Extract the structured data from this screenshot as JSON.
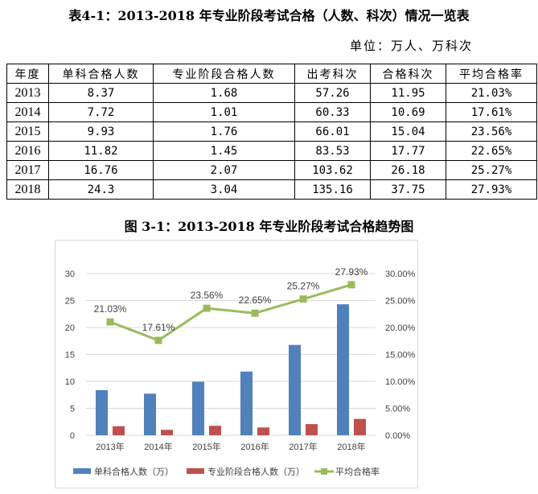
{
  "table_title": "表4-1：2013-2018 年专业阶段考试合格（人数、科次）情况一览表",
  "unit": "单位：万人、万科次",
  "table": {
    "headers": [
      "年度",
      "单科合格人数",
      "专业阶段合格人数",
      "出考科次",
      "合格科次",
      "平均合格率"
    ],
    "rows": [
      [
        "2013",
        "8.37",
        "1.68",
        "57.26",
        "11.95",
        "21.03%"
      ],
      [
        "2014",
        "7.72",
        "1.01",
        "60.33",
        "10.69",
        "17.61%"
      ],
      [
        "2015",
        "9.93",
        "1.76",
        "66.01",
        "15.04",
        "23.56%"
      ],
      [
        "2016",
        "11.82",
        "1.45",
        "83.53",
        "17.77",
        "22.65%"
      ],
      [
        "2017",
        "16.76",
        "2.07",
        "103.62",
        "26.18",
        "25.27%"
      ],
      [
        "2018",
        "24.3",
        "3.04",
        "135.16",
        "37.75",
        "27.93%"
      ]
    ]
  },
  "chart_title": "图 3-1：2013-2018 年专业阶段考试合格趋势图",
  "chart_data": {
    "type": "bar",
    "categories": [
      "2013年",
      "2014年",
      "2015年",
      "2016年",
      "2017年",
      "2018年"
    ],
    "series": [
      {
        "name": "单科合格人数（万）",
        "type": "bar",
        "axis": "left",
        "color": "#4f81bd",
        "values": [
          8.37,
          7.72,
          9.93,
          11.82,
          16.76,
          24.3
        ]
      },
      {
        "name": "专业阶段合格人数（万）",
        "type": "bar",
        "axis": "left",
        "color": "#c0504d",
        "values": [
          1.68,
          1.01,
          1.76,
          1.45,
          2.07,
          3.04
        ]
      },
      {
        "name": "平均合格率",
        "type": "line",
        "axis": "right",
        "color": "#9bbb59",
        "values": [
          21.03,
          17.61,
          23.56,
          22.65,
          25.27,
          27.93
        ],
        "labels": [
          "21.03%",
          "17.61%",
          "23.56%",
          "22.65%",
          "25.27%",
          "27.93%"
        ]
      }
    ],
    "ylim": [
      0,
      30
    ],
    "yticks": [
      "0",
      "5",
      "10",
      "15",
      "20",
      "25",
      "30"
    ],
    "y2lim": [
      0,
      30
    ],
    "y2ticks": [
      "0.00%",
      "5.00%",
      "10.00%",
      "15.00%",
      "20.00%",
      "25.00%",
      "30.00%"
    ],
    "grid": true,
    "legend": "bottom"
  }
}
